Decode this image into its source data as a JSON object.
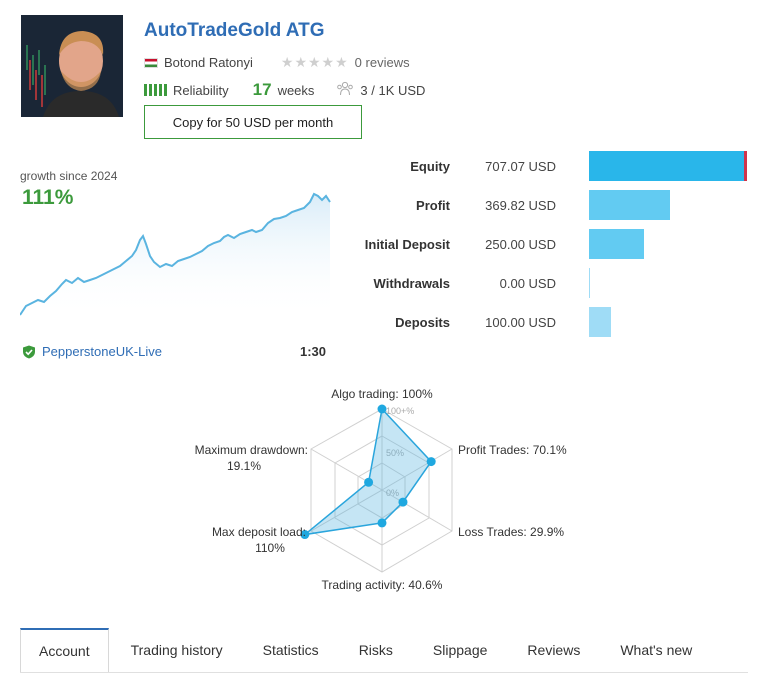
{
  "header": {
    "title": "AutoTradeGold ATG",
    "author": "Botond Ratonyi",
    "stars_rating": 0,
    "reviews": "0 reviews",
    "reliability_label": "Reliability",
    "weeks_value": "17",
    "weeks_label": "weeks",
    "subscribers": "3 / 1K USD",
    "copy_button": "Copy for 50 USD per month"
  },
  "growth": {
    "label": "growth since 2024",
    "value": "111%",
    "broker": "PepperstoneUK-Live",
    "leverage": "1:30"
  },
  "stats": [
    {
      "label": "Equity",
      "value": "707.07 USD",
      "amount": 707.07,
      "color": "#29b6ea"
    },
    {
      "label": "Profit",
      "value": "369.82 USD",
      "amount": 369.82,
      "color": "#62cbf2"
    },
    {
      "label": "Initial Deposit",
      "value": "250.00 USD",
      "amount": 250.0,
      "color": "#62cbf2"
    },
    {
      "label": "Withdrawals",
      "value": "0.00 USD",
      "amount": 0.0,
      "color": "#9fdcf6"
    },
    {
      "label": "Deposits",
      "value": "100.00 USD",
      "amount": 100.0,
      "color": "#9fdcf6"
    }
  ],
  "radar": {
    "scale_labels": [
      "100+%",
      "50%",
      "0%"
    ],
    "axes": [
      {
        "label": "Algo trading: 100%",
        "value": 100
      },
      {
        "label": "Profit Trades: 70.1%",
        "value": 70.1
      },
      {
        "label": "Loss Trades: 29.9%",
        "value": 29.9
      },
      {
        "label": "Trading activity: 40.6%",
        "value": 40.6
      },
      {
        "label_line1": "Max deposit load:",
        "label_line2": "110%",
        "value": 110
      },
      {
        "label_line1": "Maximum drawdown:",
        "label_line2": "19.1%",
        "value": 19.1
      }
    ]
  },
  "tabs": [
    "Account",
    "Trading history",
    "Statistics",
    "Risks",
    "Slippage",
    "Reviews",
    "What's new"
  ],
  "colors": {
    "brand_blue": "#2f6db5",
    "green": "#3c9a3c",
    "chart_line": "#5ab4e0"
  }
}
